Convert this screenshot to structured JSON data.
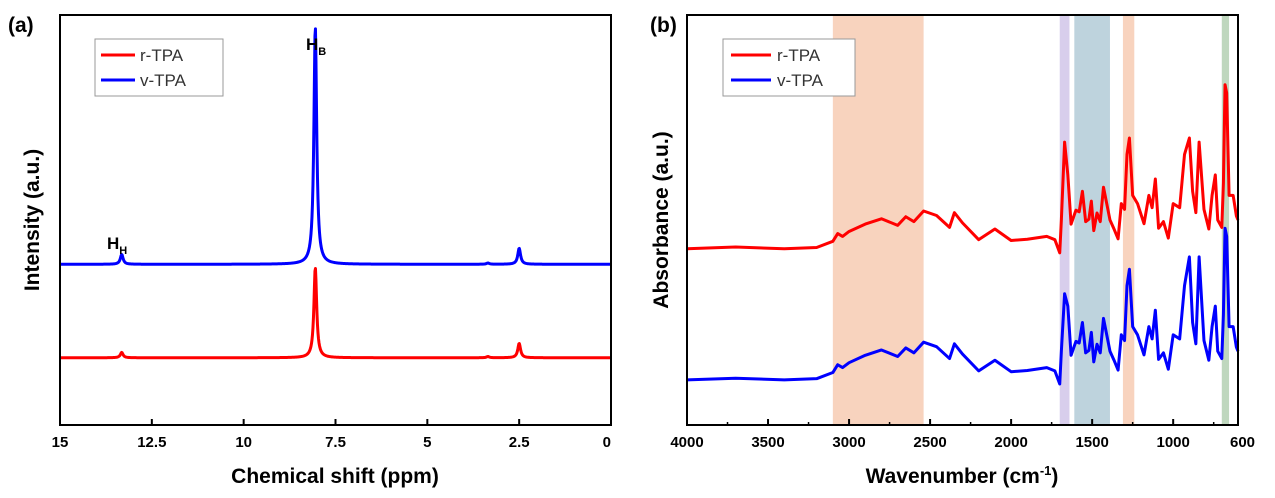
{
  "chart_data": [
    {
      "panel": "(a)",
      "type": "line",
      "xlabel": "Chemical shift (ppm)",
      "ylabel": "Intensity (a.u.)",
      "xlim": [
        15,
        0
      ],
      "x_reversed": true,
      "xticks": [
        15,
        12.5,
        10,
        7.5,
        5,
        2.5,
        0
      ],
      "xtick_labels": [
        "15",
        "12.5",
        "10",
        "7.5",
        "5",
        "2.5",
        "0"
      ],
      "ylim": [
        0,
        100
      ],
      "legend": {
        "placement": "top-left",
        "entries": [
          "r-TPA",
          "v-TPA"
        ]
      },
      "series": [
        {
          "name": "r-TPA",
          "color": "#ff0000",
          "baseline": 16.4,
          "peaks": [
            {
              "x": 13.32,
              "height": 1.3
            },
            {
              "x": 8.05,
              "height": 22.0
            },
            {
              "x": 3.35,
              "height": 0.3
            },
            {
              "x": 2.5,
              "height": 3.5
            }
          ]
        },
        {
          "name": "v-TPA",
          "color": "#0000ff",
          "baseline": 39.2,
          "peaks": [
            {
              "x": 13.32,
              "height": 2.4
            },
            {
              "x": 8.05,
              "height": 58.0
            },
            {
              "x": 3.35,
              "height": 0.3
            },
            {
              "x": 2.5,
              "height": 3.9
            }
          ]
        }
      ],
      "annotations": [
        {
          "main": "H",
          "sub": "H",
          "x": 13.32
        },
        {
          "main": "H",
          "sub": "B",
          "x": 8.05
        }
      ]
    },
    {
      "panel": "(b)",
      "type": "line",
      "xlabel": "Wavenumber (cm",
      "xlabel_sup": "-1",
      "xlabel_end": ")",
      "ylabel": "Absorbance (a.u.)",
      "xlim": [
        4000,
        600
      ],
      "x_reversed": true,
      "xticks": [
        4000,
        3500,
        3000,
        2500,
        2000,
        1500,
        1000,
        600
      ],
      "xtick_labels": [
        "4000",
        "3500",
        "3000",
        "2500",
        "2000",
        "1500",
        "1000",
        "600"
      ],
      "ylim": [
        0,
        100
      ],
      "legend": {
        "placement": "top-left",
        "entries": [
          "r-TPA",
          "v-TPA"
        ]
      },
      "highlight_bands": [
        {
          "from": 3100,
          "to": 2540,
          "color": "#f5c4a8"
        },
        {
          "from": 1700,
          "to": 1640,
          "color": "#cbbde6"
        },
        {
          "from": 1610,
          "to": 1390,
          "color": "#a8c4d2"
        },
        {
          "from": 1310,
          "to": 1240,
          "color": "#f5c4a8"
        },
        {
          "from": 700,
          "to": 655,
          "color": "#a9c9a8"
        }
      ],
      "series": [
        {
          "name": "r-TPA",
          "color": "#ff0000",
          "offset": 43,
          "points": [
            [
              4000,
              0
            ],
            [
              3700,
              0.4
            ],
            [
              3400,
              0
            ],
            [
              3200,
              0.3
            ],
            [
              3100,
              1.8
            ],
            [
              3070,
              3.7
            ],
            [
              3040,
              3
            ],
            [
              3000,
              4.2
            ],
            [
              2900,
              6
            ],
            [
              2800,
              7.3
            ],
            [
              2700,
              5.7
            ],
            [
              2650,
              7.8
            ],
            [
              2600,
              6.6
            ],
            [
              2540,
              9.2
            ],
            [
              2460,
              8.1
            ],
            [
              2380,
              5.2
            ],
            [
              2350,
              8.8
            ],
            [
              2300,
              6.3
            ],
            [
              2200,
              2.2
            ],
            [
              2100,
              4.8
            ],
            [
              2000,
              2
            ],
            [
              1900,
              2.3
            ],
            [
              1780,
              3
            ],
            [
              1730,
              2.2
            ],
            [
              1700,
              -1
            ],
            [
              1690,
              7
            ],
            [
              1670,
              26
            ],
            [
              1650,
              18
            ],
            [
              1630,
              6
            ],
            [
              1600,
              9.4
            ],
            [
              1580,
              9
            ],
            [
              1560,
              14
            ],
            [
              1540,
              6.6
            ],
            [
              1520,
              7.2
            ],
            [
              1505,
              11.6
            ],
            [
              1490,
              4.4
            ],
            [
              1470,
              8.7
            ],
            [
              1450,
              6.6
            ],
            [
              1430,
              15
            ],
            [
              1410,
              11
            ],
            [
              1390,
              7
            ],
            [
              1365,
              4.8
            ],
            [
              1340,
              2.4
            ],
            [
              1320,
              11
            ],
            [
              1300,
              9.6
            ],
            [
              1285,
              23
            ],
            [
              1270,
              27
            ],
            [
              1250,
              13
            ],
            [
              1220,
              11
            ],
            [
              1180,
              6.1
            ],
            [
              1150,
              13
            ],
            [
              1130,
              10
            ],
            [
              1110,
              17
            ],
            [
              1090,
              5
            ],
            [
              1060,
              6.6
            ],
            [
              1030,
              2.6
            ],
            [
              1000,
              11
            ],
            [
              960,
              10
            ],
            [
              930,
              23
            ],
            [
              900,
              27
            ],
            [
              880,
              14
            ],
            [
              860,
              8.8
            ],
            [
              840,
              26
            ],
            [
              810,
              9.6
            ],
            [
              780,
              4.8
            ],
            [
              760,
              13
            ],
            [
              740,
              18
            ],
            [
              725,
              7
            ],
            [
              700,
              5.2
            ],
            [
              690,
              16
            ],
            [
              680,
              40
            ],
            [
              670,
              38
            ],
            [
              655,
              13
            ],
            [
              630,
              13
            ],
            [
              610,
              8
            ],
            [
              600,
              7
            ]
          ]
        },
        {
          "name": "v-TPA",
          "color": "#0000ff",
          "offset": 11,
          "points": [
            [
              4000,
              0
            ],
            [
              3700,
              0.4
            ],
            [
              3400,
              0
            ],
            [
              3200,
              0.3
            ],
            [
              3100,
              1.8
            ],
            [
              3070,
              3.7
            ],
            [
              3040,
              3
            ],
            [
              3000,
              4.2
            ],
            [
              2900,
              6
            ],
            [
              2800,
              7.3
            ],
            [
              2700,
              5.7
            ],
            [
              2650,
              7.8
            ],
            [
              2600,
              6.6
            ],
            [
              2540,
              9.2
            ],
            [
              2460,
              8.1
            ],
            [
              2380,
              5.2
            ],
            [
              2350,
              8.8
            ],
            [
              2300,
              6.3
            ],
            [
              2200,
              2.2
            ],
            [
              2100,
              4.8
            ],
            [
              2000,
              2
            ],
            [
              1900,
              2.3
            ],
            [
              1780,
              3
            ],
            [
              1730,
              2.2
            ],
            [
              1700,
              -1
            ],
            [
              1690,
              7
            ],
            [
              1670,
              21
            ],
            [
              1650,
              18
            ],
            [
              1630,
              6
            ],
            [
              1600,
              9.4
            ],
            [
              1580,
              9
            ],
            [
              1560,
              14
            ],
            [
              1540,
              6.6
            ],
            [
              1520,
              7.2
            ],
            [
              1505,
              11.6
            ],
            [
              1490,
              4.4
            ],
            [
              1470,
              8.7
            ],
            [
              1450,
              6.6
            ],
            [
              1430,
              15
            ],
            [
              1410,
              11
            ],
            [
              1390,
              7
            ],
            [
              1365,
              4.8
            ],
            [
              1340,
              2.4
            ],
            [
              1320,
              11
            ],
            [
              1300,
              9.6
            ],
            [
              1285,
              23
            ],
            [
              1270,
              27
            ],
            [
              1250,
              13
            ],
            [
              1220,
              11
            ],
            [
              1180,
              6.1
            ],
            [
              1150,
              13
            ],
            [
              1130,
              10
            ],
            [
              1110,
              17
            ],
            [
              1090,
              5
            ],
            [
              1060,
              6.6
            ],
            [
              1030,
              2.6
            ],
            [
              1000,
              11
            ],
            [
              960,
              10
            ],
            [
              930,
              23
            ],
            [
              900,
              30
            ],
            [
              880,
              14
            ],
            [
              860,
              8.8
            ],
            [
              840,
              30
            ],
            [
              810,
              9.6
            ],
            [
              780,
              4.8
            ],
            [
              760,
              13
            ],
            [
              740,
              18
            ],
            [
              725,
              7
            ],
            [
              700,
              5.2
            ],
            [
              690,
              16
            ],
            [
              680,
              37
            ],
            [
              670,
              35
            ],
            [
              655,
              13
            ],
            [
              630,
              13
            ],
            [
              610,
              8
            ],
            [
              600,
              7
            ]
          ]
        }
      ]
    }
  ]
}
